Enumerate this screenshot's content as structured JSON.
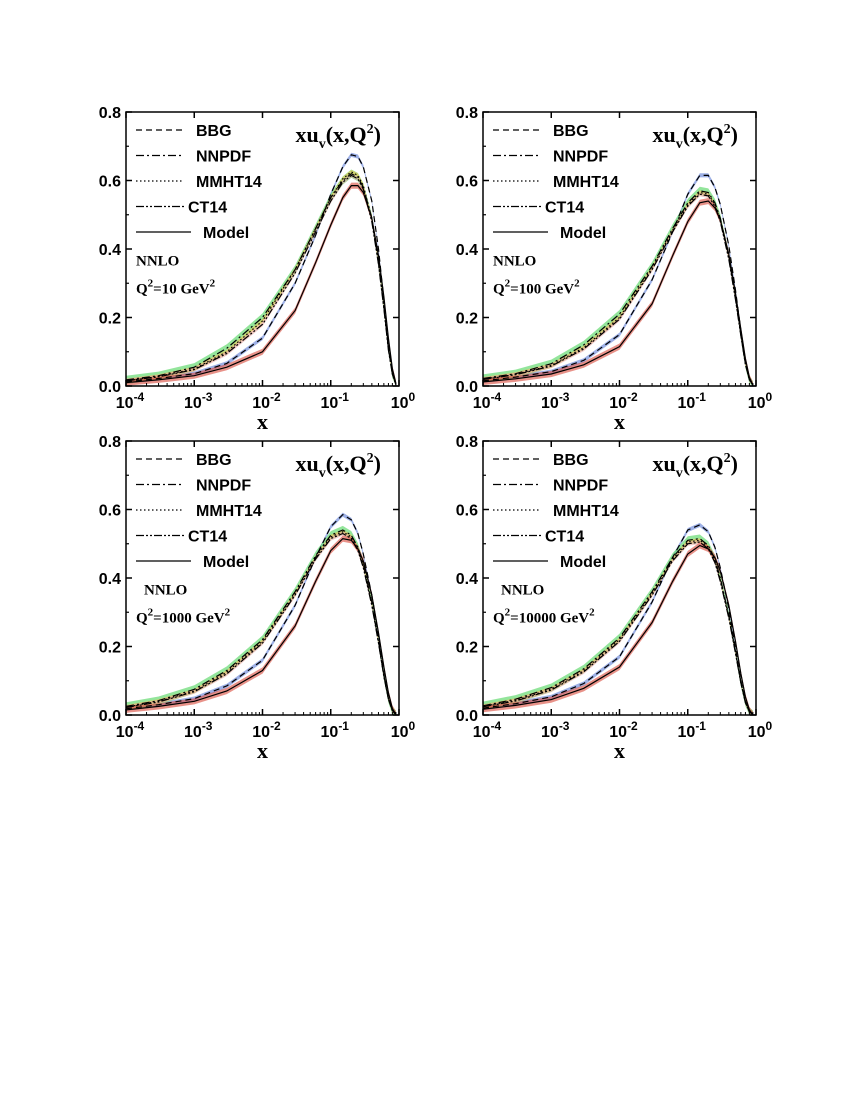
{
  "chart_data": [
    {
      "type": "line",
      "title": "xu_v(x,Q^2)",
      "xlabel": "x",
      "xscale": "log",
      "xlim": [
        0.0001,
        1
      ],
      "ylim": [
        0.0,
        0.8
      ],
      "xticks": [
        0.0001,
        0.001,
        0.01,
        0.1,
        1
      ],
      "yticks": [
        "0.0",
        "0.2",
        "0.4",
        "0.6",
        "0.8"
      ],
      "legend_position": "top-left",
      "annotations": [
        "NNLO",
        "Q2=10 GeV2"
      ],
      "series": [
        {
          "name": "BBG",
          "style": "dashed",
          "band": "#5b7bd6",
          "x": [
            0.0001,
            0.0003,
            0.001,
            0.003,
            0.01,
            0.03,
            0.06,
            0.1,
            0.15,
            0.2,
            0.25,
            0.3,
            0.4,
            0.5,
            0.6,
            0.7,
            0.8,
            0.9
          ],
          "y": [
            0.012,
            0.022,
            0.036,
            0.066,
            0.14,
            0.3,
            0.44,
            0.56,
            0.64,
            0.675,
            0.67,
            0.64,
            0.54,
            0.4,
            0.25,
            0.12,
            0.04,
            0.005
          ]
        },
        {
          "name": "NNPDF",
          "style": "dashdot",
          "band": "#6fdc7a",
          "x": [
            0.0001,
            0.0003,
            0.001,
            0.003,
            0.01,
            0.03,
            0.06,
            0.1,
            0.15,
            0.2,
            0.25,
            0.3,
            0.4,
            0.5,
            0.6,
            0.7,
            0.8,
            0.9
          ],
          "y": [
            0.018,
            0.03,
            0.055,
            0.11,
            0.2,
            0.34,
            0.46,
            0.55,
            0.6,
            0.62,
            0.61,
            0.58,
            0.49,
            0.36,
            0.23,
            0.11,
            0.035,
            0.004
          ]
        },
        {
          "name": "MMHT14",
          "style": "dotted",
          "band": "#f2c14e",
          "x": [
            0.0001,
            0.0003,
            0.001,
            0.003,
            0.01,
            0.03,
            0.06,
            0.1,
            0.15,
            0.2,
            0.25,
            0.3,
            0.4,
            0.5,
            0.6,
            0.7,
            0.8,
            0.9
          ],
          "y": [
            0.015,
            0.028,
            0.05,
            0.1,
            0.19,
            0.34,
            0.46,
            0.55,
            0.605,
            0.625,
            0.615,
            0.585,
            0.49,
            0.36,
            0.23,
            0.11,
            0.035,
            0.004
          ]
        },
        {
          "name": "CT14",
          "style": "dashdotdot",
          "band": "#e8a9a1",
          "x": [
            0.0001,
            0.0003,
            0.001,
            0.003,
            0.01,
            0.03,
            0.06,
            0.1,
            0.15,
            0.2,
            0.25,
            0.3,
            0.4,
            0.5,
            0.6,
            0.7,
            0.8,
            0.9
          ],
          "y": [
            0.015,
            0.027,
            0.048,
            0.095,
            0.18,
            0.33,
            0.45,
            0.54,
            0.595,
            0.615,
            0.605,
            0.575,
            0.48,
            0.355,
            0.225,
            0.105,
            0.034,
            0.004
          ]
        },
        {
          "name": "Model",
          "style": "solid",
          "band": "#d94a3a",
          "x": [
            0.0001,
            0.0003,
            0.001,
            0.003,
            0.01,
            0.03,
            0.06,
            0.1,
            0.15,
            0.2,
            0.25,
            0.3,
            0.4,
            0.5,
            0.6,
            0.7,
            0.8,
            0.9
          ],
          "y": [
            0.01,
            0.018,
            0.03,
            0.055,
            0.1,
            0.22,
            0.36,
            0.47,
            0.55,
            0.585,
            0.585,
            0.565,
            0.49,
            0.38,
            0.26,
            0.14,
            0.05,
            0.008
          ]
        }
      ]
    },
    {
      "type": "line",
      "title": "xu_v(x,Q^2)",
      "xlabel": "x",
      "xscale": "log",
      "xlim": [
        0.0001,
        1
      ],
      "ylim": [
        0.0,
        0.8
      ],
      "xticks": [
        0.0001,
        0.001,
        0.01,
        0.1,
        1
      ],
      "yticks": [
        "0.0",
        "0.2",
        "0.4",
        "0.6",
        "0.8"
      ],
      "legend_position": "top-left",
      "annotations": [
        "NNLO",
        "Q2=100 GeV2"
      ],
      "series": [
        {
          "name": "BBG",
          "style": "dashed",
          "band": "#5b7bd6",
          "x": [
            0.0001,
            0.0003,
            0.001,
            0.003,
            0.01,
            0.03,
            0.06,
            0.1,
            0.15,
            0.2,
            0.25,
            0.3,
            0.4,
            0.5,
            0.6,
            0.7,
            0.8,
            0.9
          ],
          "y": [
            0.015,
            0.026,
            0.042,
            0.075,
            0.15,
            0.31,
            0.45,
            0.56,
            0.615,
            0.615,
            0.58,
            0.53,
            0.41,
            0.28,
            0.16,
            0.07,
            0.02,
            0.002
          ]
        },
        {
          "name": "NNPDF",
          "style": "dashdot",
          "band": "#6fdc7a",
          "x": [
            0.0001,
            0.0003,
            0.001,
            0.003,
            0.01,
            0.03,
            0.06,
            0.1,
            0.15,
            0.2,
            0.25,
            0.3,
            0.4,
            0.5,
            0.6,
            0.7,
            0.8,
            0.9
          ],
          "y": [
            0.022,
            0.036,
            0.065,
            0.12,
            0.21,
            0.35,
            0.46,
            0.535,
            0.57,
            0.565,
            0.535,
            0.49,
            0.38,
            0.26,
            0.15,
            0.065,
            0.019,
            0.002
          ]
        },
        {
          "name": "MMHT14",
          "style": "dotted",
          "band": "#f2c14e",
          "x": [
            0.0001,
            0.0003,
            0.001,
            0.003,
            0.01,
            0.03,
            0.06,
            0.1,
            0.15,
            0.2,
            0.25,
            0.3,
            0.4,
            0.5,
            0.6,
            0.7,
            0.8,
            0.9
          ],
          "y": [
            0.02,
            0.034,
            0.06,
            0.112,
            0.2,
            0.345,
            0.455,
            0.53,
            0.565,
            0.56,
            0.53,
            0.485,
            0.375,
            0.255,
            0.148,
            0.064,
            0.019,
            0.002
          ]
        },
        {
          "name": "CT14",
          "style": "dashdotdot",
          "band": "#e8a9a1",
          "x": [
            0.0001,
            0.0003,
            0.001,
            0.003,
            0.01,
            0.03,
            0.06,
            0.1,
            0.15,
            0.2,
            0.25,
            0.3,
            0.4,
            0.5,
            0.6,
            0.7,
            0.8,
            0.9
          ],
          "y": [
            0.019,
            0.033,
            0.058,
            0.108,
            0.195,
            0.34,
            0.45,
            0.525,
            0.56,
            0.555,
            0.525,
            0.48,
            0.37,
            0.252,
            0.146,
            0.063,
            0.018,
            0.002
          ]
        },
        {
          "name": "Model",
          "style": "solid",
          "band": "#d94a3a",
          "x": [
            0.0001,
            0.0003,
            0.001,
            0.003,
            0.01,
            0.03,
            0.06,
            0.1,
            0.15,
            0.2,
            0.25,
            0.3,
            0.4,
            0.5,
            0.6,
            0.7,
            0.8,
            0.9
          ],
          "y": [
            0.012,
            0.021,
            0.035,
            0.062,
            0.115,
            0.24,
            0.38,
            0.48,
            0.535,
            0.54,
            0.52,
            0.485,
            0.385,
            0.27,
            0.165,
            0.08,
            0.025,
            0.003
          ]
        }
      ]
    },
    {
      "type": "line",
      "title": "xu_v(x,Q^2)",
      "xlabel": "x",
      "xscale": "log",
      "xlim": [
        0.0001,
        1
      ],
      "ylim": [
        0.0,
        0.8
      ],
      "xticks": [
        0.0001,
        0.001,
        0.01,
        0.1,
        1
      ],
      "yticks": [
        "0.0",
        "0.2",
        "0.4",
        "0.6",
        "0.8"
      ],
      "legend_position": "top-left",
      "annotations": [
        "NNLO",
        "Q2=1000 GeV2"
      ],
      "series": [
        {
          "name": "BBG",
          "style": "dashed",
          "band": "#5b7bd6",
          "x": [
            0.0001,
            0.0003,
            0.001,
            0.003,
            0.01,
            0.03,
            0.06,
            0.1,
            0.15,
            0.2,
            0.25,
            0.3,
            0.4,
            0.5,
            0.6,
            0.7,
            0.8,
            0.9
          ],
          "y": [
            0.018,
            0.03,
            0.048,
            0.085,
            0.16,
            0.32,
            0.46,
            0.55,
            0.585,
            0.57,
            0.53,
            0.47,
            0.35,
            0.23,
            0.12,
            0.05,
            0.014,
            0.001
          ]
        },
        {
          "name": "NNPDF",
          "style": "dashdot",
          "band": "#6fdc7a",
          "x": [
            0.0001,
            0.0003,
            0.001,
            0.003,
            0.01,
            0.03,
            0.06,
            0.1,
            0.15,
            0.2,
            0.25,
            0.3,
            0.4,
            0.5,
            0.6,
            0.7,
            0.8,
            0.9
          ],
          "y": [
            0.025,
            0.042,
            0.075,
            0.13,
            0.22,
            0.36,
            0.465,
            0.525,
            0.54,
            0.525,
            0.49,
            0.44,
            0.33,
            0.215,
            0.115,
            0.048,
            0.013,
            0.001
          ]
        },
        {
          "name": "MMHT14",
          "style": "dotted",
          "band": "#f2c14e",
          "x": [
            0.0001,
            0.0003,
            0.001,
            0.003,
            0.01,
            0.03,
            0.06,
            0.1,
            0.15,
            0.2,
            0.25,
            0.3,
            0.4,
            0.5,
            0.6,
            0.7,
            0.8,
            0.9
          ],
          "y": [
            0.023,
            0.04,
            0.07,
            0.125,
            0.215,
            0.355,
            0.46,
            0.52,
            0.535,
            0.52,
            0.485,
            0.435,
            0.325,
            0.212,
            0.113,
            0.047,
            0.013,
            0.001
          ]
        },
        {
          "name": "CT14",
          "style": "dashdotdot",
          "band": "#e8a9a1",
          "x": [
            0.0001,
            0.0003,
            0.001,
            0.003,
            0.01,
            0.03,
            0.06,
            0.1,
            0.15,
            0.2,
            0.25,
            0.3,
            0.4,
            0.5,
            0.6,
            0.7,
            0.8,
            0.9
          ],
          "y": [
            0.022,
            0.038,
            0.068,
            0.12,
            0.21,
            0.35,
            0.455,
            0.515,
            0.53,
            0.515,
            0.48,
            0.43,
            0.32,
            0.21,
            0.112,
            0.046,
            0.012,
            0.001
          ]
        },
        {
          "name": "Model",
          "style": "solid",
          "band": "#d94a3a",
          "x": [
            0.0001,
            0.0003,
            0.001,
            0.003,
            0.01,
            0.03,
            0.06,
            0.1,
            0.15,
            0.2,
            0.25,
            0.3,
            0.4,
            0.5,
            0.6,
            0.7,
            0.8,
            0.9
          ],
          "y": [
            0.015,
            0.025,
            0.04,
            0.07,
            0.13,
            0.26,
            0.39,
            0.48,
            0.515,
            0.51,
            0.485,
            0.45,
            0.35,
            0.24,
            0.14,
            0.065,
            0.019,
            0.002
          ]
        }
      ]
    },
    {
      "type": "line",
      "title": "xu_v(x,Q^2)",
      "xlabel": "x",
      "xscale": "log",
      "xlim": [
        0.0001,
        1
      ],
      "ylim": [
        0.0,
        0.8
      ],
      "xticks": [
        0.0001,
        0.001,
        0.01,
        0.1,
        1
      ],
      "yticks": [
        "0.0",
        "0.2",
        "0.4",
        "0.6",
        "0.8"
      ],
      "legend_position": "top-left",
      "annotations": [
        "NNLO",
        "Q2=10000 GeV2"
      ],
      "series": [
        {
          "name": "BBG",
          "style": "dashed",
          "band": "#5b7bd6",
          "x": [
            0.0001,
            0.0003,
            0.001,
            0.003,
            0.01,
            0.03,
            0.06,
            0.1,
            0.15,
            0.2,
            0.25,
            0.3,
            0.4,
            0.5,
            0.6,
            0.7,
            0.8,
            0.9
          ],
          "y": [
            0.02,
            0.033,
            0.053,
            0.092,
            0.17,
            0.33,
            0.46,
            0.54,
            0.555,
            0.535,
            0.49,
            0.43,
            0.31,
            0.195,
            0.1,
            0.04,
            0.01,
            0.001
          ]
        },
        {
          "name": "NNPDF",
          "style": "dashdot",
          "band": "#6fdc7a",
          "x": [
            0.0001,
            0.0003,
            0.001,
            0.003,
            0.01,
            0.03,
            0.06,
            0.1,
            0.15,
            0.2,
            0.25,
            0.3,
            0.4,
            0.5,
            0.6,
            0.7,
            0.8,
            0.9
          ],
          "y": [
            0.027,
            0.046,
            0.08,
            0.135,
            0.225,
            0.36,
            0.46,
            0.51,
            0.515,
            0.495,
            0.455,
            0.4,
            0.29,
            0.185,
            0.095,
            0.038,
            0.01,
            0.001
          ]
        },
        {
          "name": "MMHT14",
          "style": "dotted",
          "band": "#f2c14e",
          "x": [
            0.0001,
            0.0003,
            0.001,
            0.003,
            0.01,
            0.03,
            0.06,
            0.1,
            0.15,
            0.2,
            0.25,
            0.3,
            0.4,
            0.5,
            0.6,
            0.7,
            0.8,
            0.9
          ],
          "y": [
            0.025,
            0.043,
            0.076,
            0.13,
            0.22,
            0.355,
            0.455,
            0.505,
            0.51,
            0.49,
            0.45,
            0.395,
            0.287,
            0.183,
            0.094,
            0.037,
            0.01,
            0.001
          ]
        },
        {
          "name": "CT14",
          "style": "dashdotdot",
          "band": "#e8a9a1",
          "x": [
            0.0001,
            0.0003,
            0.001,
            0.003,
            0.01,
            0.03,
            0.06,
            0.1,
            0.15,
            0.2,
            0.25,
            0.3,
            0.4,
            0.5,
            0.6,
            0.7,
            0.8,
            0.9
          ],
          "y": [
            0.024,
            0.041,
            0.073,
            0.126,
            0.215,
            0.35,
            0.45,
            0.5,
            0.505,
            0.485,
            0.445,
            0.39,
            0.283,
            0.18,
            0.093,
            0.036,
            0.009,
            0.001
          ]
        },
        {
          "name": "Model",
          "style": "solid",
          "band": "#d94a3a",
          "x": [
            0.0001,
            0.0003,
            0.001,
            0.003,
            0.01,
            0.03,
            0.06,
            0.1,
            0.15,
            0.2,
            0.25,
            0.3,
            0.4,
            0.5,
            0.6,
            0.7,
            0.8,
            0.9
          ],
          "y": [
            0.017,
            0.028,
            0.045,
            0.078,
            0.14,
            0.27,
            0.39,
            0.47,
            0.495,
            0.485,
            0.46,
            0.42,
            0.32,
            0.215,
            0.12,
            0.053,
            0.015,
            0.001
          ]
        }
      ]
    }
  ]
}
